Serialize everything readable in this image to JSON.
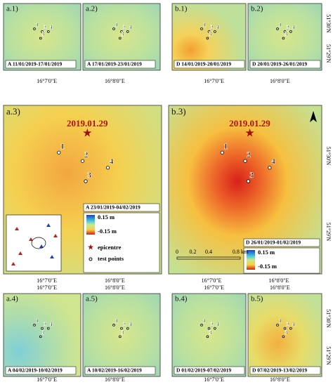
{
  "panels": [
    {
      "label": "a.1)",
      "caption": "A 11/01/2019-17/01/2019"
    },
    {
      "label": "a.2)",
      "caption": "A 17/01/2019-23/01/2019"
    },
    {
      "label": "b.1)",
      "caption": "D 14/01/2019-20/01/2019"
    },
    {
      "label": "b.2)",
      "caption": "D 20/01/2019-26/01/2019"
    },
    {
      "label": "a.3)",
      "caption": "A 23/01/2019-04/02/2019"
    },
    {
      "label": "b.3)",
      "caption": "D 26/01/2019-01/02/2019"
    },
    {
      "label": "a.4)",
      "caption": "A 04/02/2019-10/02/2019"
    },
    {
      "label": "a.5)",
      "caption": "A 10/02/2019-16/02/2019"
    },
    {
      "label": "b.4)",
      "caption": "D 01/02/2019-07/02/2019"
    },
    {
      "label": "b.5)",
      "caption": "D 07/02/2019-13/02/2019"
    }
  ],
  "longitude_labels": [
    "16°7'0\"E",
    "16°8'0\"E"
  ],
  "latitude_labels": [
    "51°30'N",
    "51°29'N"
  ],
  "test_points": [
    "1",
    "2",
    "3",
    "4"
  ],
  "epicentre_date": "2019.01.29",
  "legend": {
    "max": "0.15 m",
    "min": "-0.15 m",
    "epicentre": "epicentre",
    "test_points": "test points"
  },
  "scale_bar": [
    "0",
    "0.2",
    "0.4",
    "0.8 km"
  ]
}
